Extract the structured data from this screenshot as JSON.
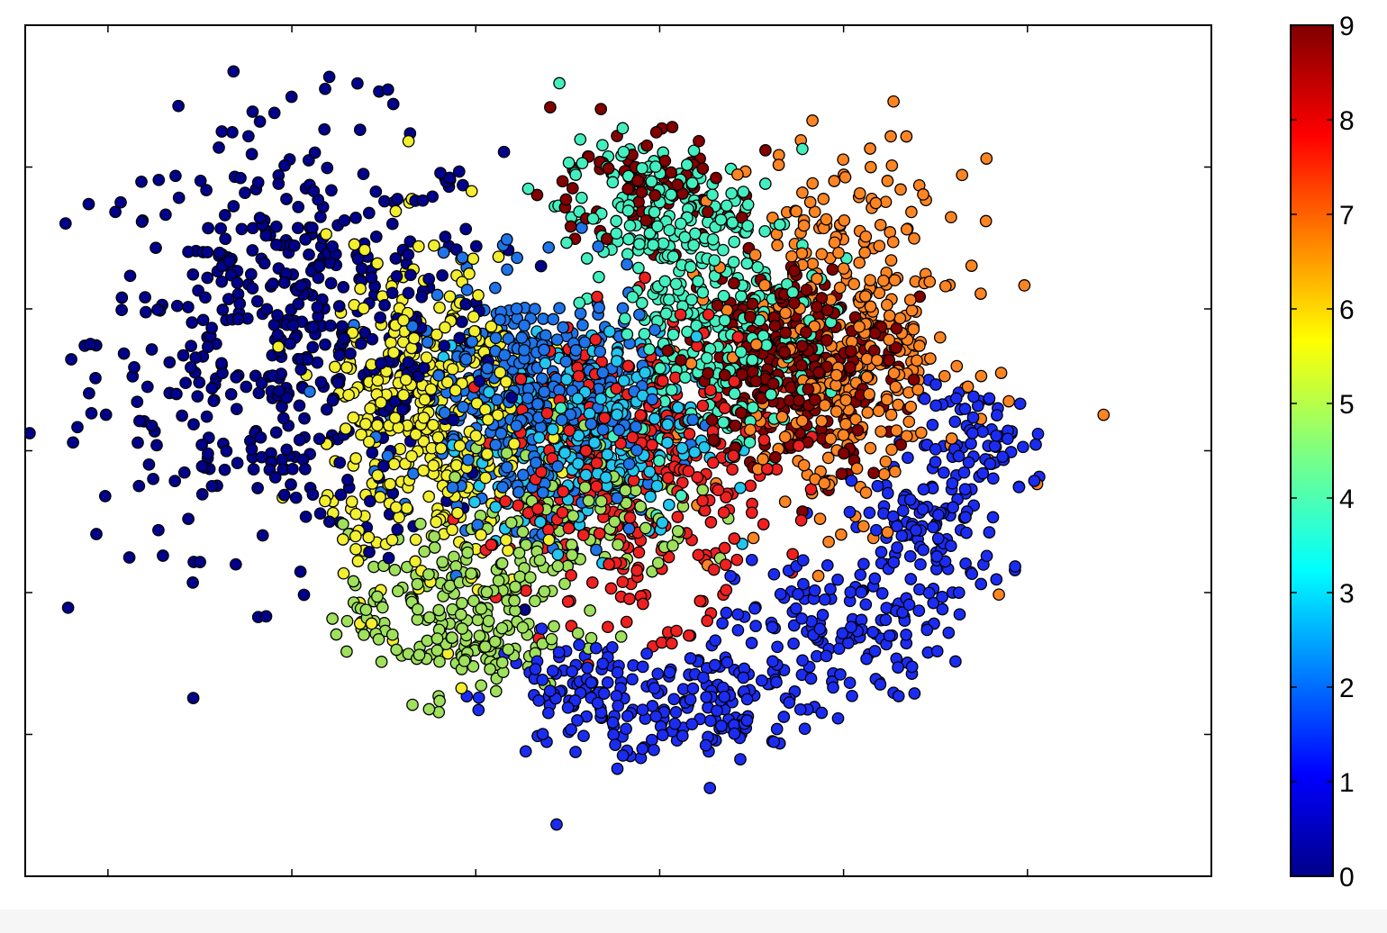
{
  "chart_data": {
    "type": "scatter",
    "title": "",
    "xlabel": "",
    "ylabel": "",
    "xlim": [
      -0.45,
      6
    ],
    "ylim": [
      0,
      6
    ],
    "x_ticks": [
      0,
      1,
      2,
      3,
      4,
      5
    ],
    "y_ticks": [
      1,
      2,
      3,
      4,
      5
    ],
    "tick_labels_shown": false,
    "grid": false,
    "legend": "none",
    "colormap": "jet",
    "colorbar": {
      "position": "right",
      "range": [
        0,
        9
      ],
      "tick_labels": [
        "0",
        "1",
        "2",
        "3",
        "4",
        "5",
        "6",
        "7",
        "8",
        "9"
      ]
    },
    "class_colors": [
      "#00008a",
      "#1b2cf2",
      "#1e74e8",
      "#22c6ef",
      "#44efbf",
      "#9fe05c",
      "#f2ee30",
      "#ff8422",
      "#ee2020",
      "#820000"
    ],
    "marker": {
      "shape": "circle",
      "edge_color": "#000000"
    },
    "clusters": [
      {
        "class": 0,
        "components": [
          {
            "center": [
              1.03,
              3.8
            ],
            "spread": [
              0.55,
              0.75
            ],
            "count": 520
          }
        ]
      },
      {
        "class": 1,
        "components": [
          {
            "center": [
              2.6,
              1.25
            ],
            "spread": [
              0.28,
              0.22
            ],
            "count": 110
          },
          {
            "center": [
              3.33,
              1.25
            ],
            "spread": [
              0.3,
              0.22
            ],
            "count": 130
          },
          {
            "center": [
              3.97,
              1.75
            ],
            "spread": [
              0.28,
              0.25
            ],
            "count": 130
          },
          {
            "center": [
              4.46,
              2.45
            ],
            "spread": [
              0.22,
              0.28
            ],
            "count": 110
          },
          {
            "center": [
              4.75,
              3.05
            ],
            "spread": [
              0.18,
              0.2
            ],
            "count": 70
          }
        ]
      },
      {
        "class": 2,
        "components": [
          {
            "center": [
              2.3,
              3.35
            ],
            "spread": [
              0.32,
              0.42
            ],
            "count": 420
          }
        ]
      },
      {
        "class": 3,
        "components": [
          {
            "center": [
              2.6,
              3.1
            ],
            "spread": [
              0.3,
              0.35
            ],
            "count": 300
          }
        ]
      },
      {
        "class": 4,
        "components": [
          {
            "center": [
              3.3,
              3.9
            ],
            "spread": [
              0.3,
              0.45
            ],
            "count": 280
          },
          {
            "center": [
              2.95,
              4.7
            ],
            "spread": [
              0.25,
              0.25
            ],
            "count": 140
          }
        ]
      },
      {
        "class": 5,
        "components": [
          {
            "center": [
              1.9,
              1.85
            ],
            "spread": [
              0.3,
              0.3
            ],
            "count": 220
          },
          {
            "center": [
              2.6,
              2.6
            ],
            "spread": [
              0.3,
              0.3
            ],
            "count": 130
          }
        ]
      },
      {
        "class": 6,
        "components": [
          {
            "center": [
              1.75,
              3.2
            ],
            "spread": [
              0.28,
              0.6
            ],
            "count": 400
          }
        ]
      },
      {
        "class": 7,
        "components": [
          {
            "center": [
              4.0,
              3.8
            ],
            "spread": [
              0.33,
              0.6
            ],
            "count": 420
          }
        ]
      },
      {
        "class": 8,
        "components": [
          {
            "center": [
              2.85,
              2.85
            ],
            "spread": [
              0.38,
              0.5
            ],
            "count": 380
          }
        ]
      },
      {
        "class": 9,
        "components": [
          {
            "center": [
              3.72,
              3.6
            ],
            "spread": [
              0.28,
              0.35
            ],
            "count": 300
          },
          {
            "center": [
              2.85,
              4.85
            ],
            "spread": [
              0.3,
              0.2
            ],
            "count": 80
          }
        ]
      }
    ]
  }
}
